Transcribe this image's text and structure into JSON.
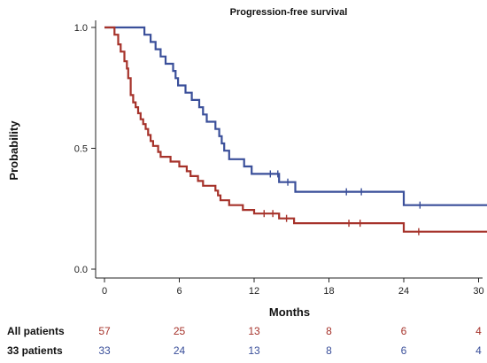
{
  "chart_data": {
    "type": "line",
    "title": "Progression-free survival",
    "xlabel": "Months",
    "ylabel": "Probability",
    "xlim": [
      0,
      31
    ],
    "ylim": [
      0,
      1.05
    ],
    "x_ticks": [
      0,
      6,
      12,
      18,
      24,
      30
    ],
    "y_ticks": [
      0.0,
      0.5,
      1.0
    ],
    "y_tick_labels": [
      "0.0",
      "0.5",
      "1.0"
    ],
    "grid": false,
    "legend": "none",
    "series": [
      {
        "color": "#3a4f9a",
        "step": [
          [
            0,
            1.0
          ],
          [
            2.8,
            1.0
          ],
          [
            3.2,
            0.97
          ],
          [
            3.7,
            0.94
          ],
          [
            4.1,
            0.91
          ],
          [
            4.5,
            0.88
          ],
          [
            4.9,
            0.85
          ],
          [
            5.5,
            0.82
          ],
          [
            5.7,
            0.79
          ],
          [
            5.9,
            0.76
          ],
          [
            6.5,
            0.73
          ],
          [
            7.0,
            0.7
          ],
          [
            7.6,
            0.67
          ],
          [
            7.9,
            0.64
          ],
          [
            8.2,
            0.61
          ],
          [
            8.9,
            0.58
          ],
          [
            9.2,
            0.55
          ],
          [
            9.4,
            0.52
          ],
          [
            9.6,
            0.49
          ],
          [
            10.0,
            0.455
          ],
          [
            11.2,
            0.425
          ],
          [
            11.8,
            0.394
          ],
          [
            14.0,
            0.36
          ],
          [
            15.3,
            0.32
          ],
          [
            24.0,
            0.265
          ],
          [
            31.0,
            0.265
          ]
        ],
        "censored": [
          [
            13.3,
            0.394
          ],
          [
            13.9,
            0.394
          ],
          [
            14.7,
            0.36
          ],
          [
            19.4,
            0.32
          ],
          [
            20.6,
            0.32
          ],
          [
            25.3,
            0.265
          ]
        ]
      },
      {
        "color": "#a6322a",
        "step": [
          [
            0,
            1.0
          ],
          [
            0.6,
            1.0
          ],
          [
            0.8,
            0.97
          ],
          [
            1.1,
            0.93
          ],
          [
            1.3,
            0.9
          ],
          [
            1.6,
            0.86
          ],
          [
            1.8,
            0.83
          ],
          [
            1.9,
            0.79
          ],
          [
            2.1,
            0.72
          ],
          [
            2.3,
            0.69
          ],
          [
            2.5,
            0.67
          ],
          [
            2.7,
            0.645
          ],
          [
            2.9,
            0.62
          ],
          [
            3.1,
            0.6
          ],
          [
            3.3,
            0.58
          ],
          [
            3.5,
            0.555
          ],
          [
            3.7,
            0.53
          ],
          [
            3.9,
            0.51
          ],
          [
            4.3,
            0.485
          ],
          [
            4.5,
            0.465
          ],
          [
            5.3,
            0.445
          ],
          [
            6.0,
            0.425
          ],
          [
            6.6,
            0.405
          ],
          [
            6.9,
            0.385
          ],
          [
            7.5,
            0.365
          ],
          [
            7.9,
            0.345
          ],
          [
            8.9,
            0.325
          ],
          [
            9.1,
            0.305
          ],
          [
            9.3,
            0.285
          ],
          [
            10.0,
            0.265
          ],
          [
            11.1,
            0.245
          ],
          [
            12.0,
            0.23
          ],
          [
            14.0,
            0.21
          ],
          [
            15.2,
            0.19
          ],
          [
            24.0,
            0.155
          ],
          [
            31.0,
            0.155
          ]
        ],
        "censored": [
          [
            12.8,
            0.23
          ],
          [
            13.5,
            0.23
          ],
          [
            14.6,
            0.21
          ],
          [
            19.6,
            0.19
          ],
          [
            20.5,
            0.19
          ],
          [
            25.2,
            0.155
          ]
        ]
      }
    ],
    "at_risk": {
      "x": [
        0,
        6,
        12,
        18,
        24,
        30
      ],
      "rows": [
        {
          "label": "All patients",
          "color": "#a6322a",
          "values": [
            "57",
            "25",
            "13",
            "8",
            "6",
            "4"
          ]
        },
        {
          "label": "33 patients",
          "color": "#3a4f9a",
          "values": [
            "33",
            "24",
            "13",
            "8",
            "6",
            "4"
          ]
        }
      ]
    }
  }
}
